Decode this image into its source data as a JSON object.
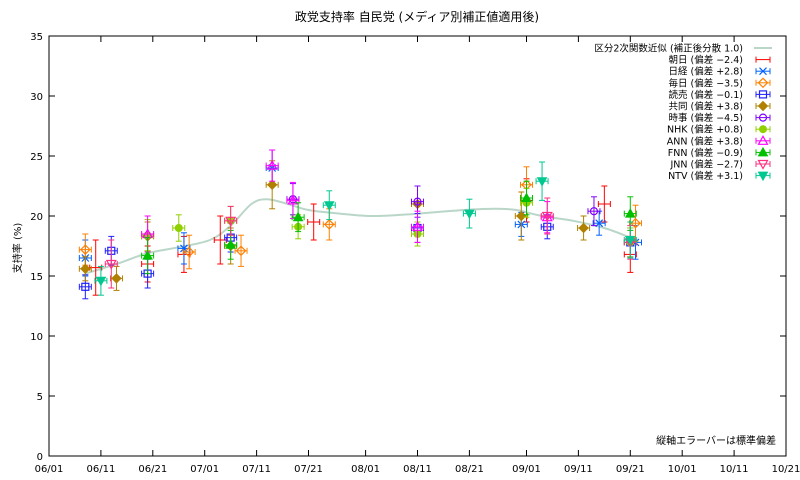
{
  "chart_data": {
    "type": "scatter",
    "title": "政党支持率 自民党 (メディア別補正値適用後)",
    "xlabel": "",
    "ylabel": "支持率 (%)",
    "ylim": [
      0,
      35
    ],
    "yticks": [
      "0",
      "5",
      "10",
      "15",
      "20",
      "25",
      "30",
      "35"
    ],
    "xticks": [
      "06/01",
      "06/11",
      "06/21",
      "07/01",
      "07/11",
      "07/21",
      "08/01",
      "08/11",
      "08/21",
      "09/01",
      "09/11",
      "09/21",
      "10/01",
      "10/11",
      "10/21"
    ],
    "legend_placement": "top-right",
    "note": "縦軸エラーバーは標準偏差",
    "fit": {
      "name": "区分2次関数近似 (補正後分散 1.0)",
      "color": "#b9d6c8",
      "points": [
        [
          "06/08",
          15.2
        ],
        [
          "06/14",
          16.0
        ],
        [
          "06/20",
          16.9
        ],
        [
          "06/26",
          17.4
        ],
        [
          "07/02",
          18.0
        ],
        [
          "07/06",
          19.2
        ],
        [
          "07/10",
          21.0
        ],
        [
          "07/13",
          21.4
        ],
        [
          "07/17",
          21.0
        ],
        [
          "07/21",
          20.5
        ],
        [
          "07/27",
          20.2
        ],
        [
          "08/02",
          20.0
        ],
        [
          "08/08",
          20.1
        ],
        [
          "08/14",
          20.3
        ],
        [
          "08/20",
          20.5
        ],
        [
          "08/26",
          20.6
        ],
        [
          "08/30",
          20.5
        ],
        [
          "09/04",
          20.0
        ],
        [
          "09/10",
          19.6
        ],
        [
          "09/16",
          19.0
        ],
        [
          "09/21",
          18.2
        ]
      ]
    },
    "series": [
      {
        "name": "朝日 (偏差 −2.4)",
        "color": "#ff0000",
        "marker": "none",
        "points": [
          [
            "06/10",
            15.7,
            2.3
          ],
          [
            "06/20",
            16.0,
            1.5
          ],
          [
            "06/27",
            16.8,
            1.5
          ],
          [
            "07/04",
            18.0,
            2.0
          ],
          [
            "07/22",
            19.5,
            1.5
          ],
          [
            "09/01",
            21.3,
            1.8
          ],
          [
            "09/16",
            21.0,
            1.5
          ],
          [
            "09/21",
            16.8,
            1.5
          ]
        ]
      },
      {
        "name": "日経 (偏差 +2.8)",
        "color": "#0060ff",
        "marker": "x",
        "points": [
          [
            "06/08",
            16.5,
            1.5
          ],
          [
            "06/27",
            17.3,
            1.3
          ],
          [
            "07/14",
            24.0,
            1.5
          ],
          [
            "08/31",
            19.3,
            1.0
          ],
          [
            "09/15",
            19.4,
            1.0
          ],
          [
            "09/22",
            17.8,
            1.4
          ]
        ]
      },
      {
        "name": "毎日 (偏差 −3.5)",
        "color": "#ff8000",
        "marker": "diamond-open",
        "points": [
          [
            "06/08",
            17.2,
            1.3
          ],
          [
            "06/28",
            17.0,
            1.4
          ],
          [
            "07/08",
            17.1,
            1.3
          ],
          [
            "07/25",
            19.3,
            1.3
          ],
          [
            "09/01",
            22.6,
            1.5
          ],
          [
            "09/22",
            19.4,
            1.5
          ]
        ]
      },
      {
        "name": "読売 (偏差 −0.1)",
        "color": "#2020ff",
        "marker": "square-open",
        "points": [
          [
            "06/08",
            14.1,
            1.0
          ],
          [
            "06/13",
            17.1,
            1.2
          ],
          [
            "06/20",
            15.2,
            1.2
          ],
          [
            "07/06",
            18.2,
            1.2
          ],
          [
            "08/11",
            19.0,
            1.2
          ],
          [
            "09/05",
            19.1,
            1.0
          ],
          [
            "09/21",
            17.8,
            1.2
          ]
        ]
      },
      {
        "name": "共同 (偏差 +3.8)",
        "color": "#b08000",
        "marker": "diamond-filled",
        "points": [
          [
            "06/08",
            15.6,
            1.0
          ],
          [
            "06/14",
            14.8,
            1.0
          ],
          [
            "06/20",
            18.3,
            1.2
          ],
          [
            "07/06",
            17.5,
            1.5
          ],
          [
            "07/14",
            22.6,
            2.0
          ],
          [
            "08/11",
            21.0,
            1.5
          ],
          [
            "08/31",
            20.0,
            2.0
          ],
          [
            "09/12",
            19.0,
            1.0
          ]
        ]
      },
      {
        "name": "時事 (偏差 −4.5)",
        "color": "#8000ff",
        "marker": "circle-open",
        "points": [
          [
            "07/18",
            21.4,
            1.3
          ],
          [
            "08/11",
            21.2,
            1.3
          ],
          [
            "09/14",
            20.4,
            1.2
          ]
        ]
      },
      {
        "name": "NHK (偏差 +0.8)",
        "color": "#90d000",
        "marker": "circle-filled",
        "points": [
          [
            "06/20",
            18.4,
            1.3
          ],
          [
            "06/26",
            19.0,
            1.1
          ],
          [
            "07/06",
            19.6,
            1.2
          ],
          [
            "07/19",
            19.1,
            1.0
          ],
          [
            "08/11",
            18.5,
            1.0
          ],
          [
            "09/01",
            21.1,
            1.2
          ],
          [
            "09/21",
            17.8,
            1.2
          ]
        ]
      },
      {
        "name": "ANN (偏差 +3.8)",
        "color": "#ff00ff",
        "marker": "triangle-open",
        "points": [
          [
            "06/20",
            18.5,
            1.5
          ],
          [
            "07/14",
            24.2,
            1.3
          ],
          [
            "07/18",
            21.3,
            1.5
          ],
          [
            "08/11",
            19.1,
            1.3
          ],
          [
            "09/05",
            19.9,
            1.3
          ]
        ]
      },
      {
        "name": "FNN (偏差 −0.9)",
        "color": "#00c000",
        "marker": "triangle-filled",
        "points": [
          [
            "06/20",
            16.7,
            1.5
          ],
          [
            "07/06",
            17.6,
            1.2
          ],
          [
            "07/19",
            19.9,
            1.2
          ],
          [
            "09/01",
            21.5,
            1.4
          ],
          [
            "09/21",
            20.2,
            1.4
          ]
        ]
      },
      {
        "name": "JNN (偏差 −2.7)",
        "color": "#ff3080",
        "marker": "triangle-down-open",
        "points": [
          [
            "06/13",
            16.0,
            2.0
          ],
          [
            "07/06",
            19.6,
            1.2
          ],
          [
            "09/05",
            20.0,
            1.5
          ],
          [
            "09/21",
            17.8,
            1.4
          ]
        ]
      },
      {
        "name": "NTV (偏差 +3.1)",
        "color": "#00c890",
        "marker": "triangle-down-filled",
        "points": [
          [
            "06/11",
            14.6,
            1.2
          ],
          [
            "07/25",
            20.9,
            1.2
          ],
          [
            "08/21",
            20.2,
            1.2
          ],
          [
            "09/04",
            22.9,
            1.6
          ],
          [
            "09/21",
            18.0,
            1.5
          ]
        ]
      }
    ]
  }
}
